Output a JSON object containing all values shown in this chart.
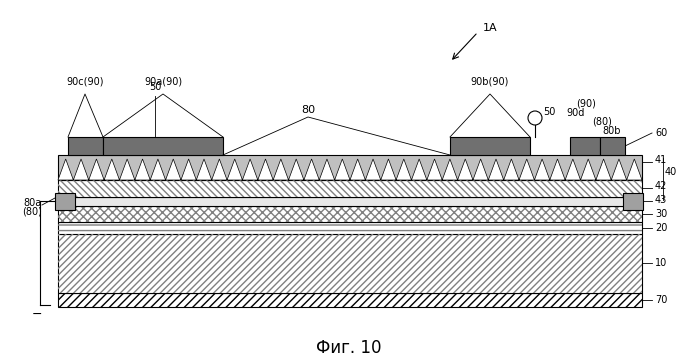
{
  "title": "Фиг. 10",
  "label_1A": "1A",
  "label_50_top": "50",
  "label_50_right": "50",
  "label_90c": "90c(90)",
  "label_90a": "90a(90)",
  "label_80": "80",
  "label_90b": "90b(90)",
  "label_90d": "90d",
  "label_90_paren": "(90)",
  "label_80_paren": "(80)",
  "label_80b": "80b",
  "label_60": "60",
  "label_41": "41",
  "label_42": "42",
  "label_40": "40",
  "label_43": "43",
  "label_80a": "80a",
  "label_80a_paren": "(80)",
  "label_30": "30",
  "label_20": "20",
  "label_10": "10",
  "label_70": "70",
  "bg_color": "#ffffff",
  "line_color": "#000000",
  "fill_light_gray": "#d0d0d0",
  "fill_dark_gray": "#808080",
  "fill_white": "#ffffff"
}
